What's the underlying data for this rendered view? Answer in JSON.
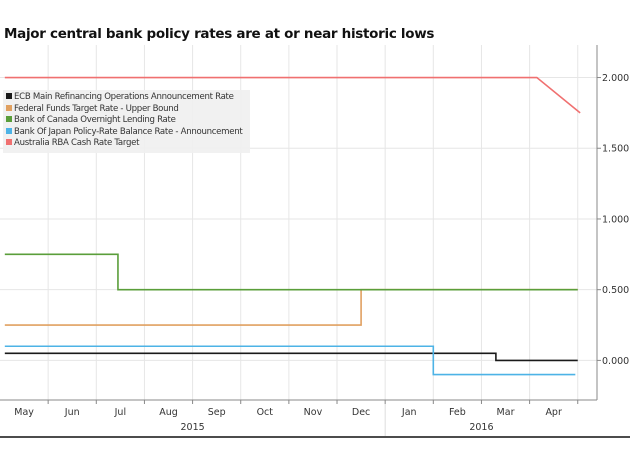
{
  "chart_data": {
    "type": "line",
    "title": "Major central bank policy rates are at or near historic lows",
    "xlabel": "",
    "ylabel": "",
    "x_unit": "months since 1 May 2015",
    "xlim": [
      0,
      12.4
    ],
    "ylim": [
      -0.28,
      2.23
    ],
    "yticks": [
      {
        "v": 2.0,
        "label": "2.000"
      },
      {
        "v": 1.5,
        "label": "1.500"
      },
      {
        "v": 1.0,
        "label": "1.000"
      },
      {
        "v": 0.5,
        "label": "0.500"
      },
      {
        "v": 0.0,
        "label": "0.000"
      }
    ],
    "months": [
      "May",
      "Jun",
      "Jul",
      "Aug",
      "Sep",
      "Oct",
      "Nov",
      "Dec",
      "Jan",
      "Feb",
      "Mar",
      "Apr"
    ],
    "years": [
      {
        "label": "2015",
        "from": 0,
        "to": 8
      },
      {
        "label": "2016",
        "from": 8,
        "to": 12.4
      }
    ],
    "grid": true,
    "legend_position": "top-left",
    "series": [
      {
        "name": "ECB Main Refinancing Operations Announcement Rate",
        "color": "#1a1a1a",
        "points": [
          [
            0.1,
            0.05
          ],
          [
            10.3,
            0.05
          ],
          [
            10.3,
            0.0
          ],
          [
            12.0,
            0.0
          ]
        ]
      },
      {
        "name": "Federal Funds Target Rate - Upper Bound",
        "color": "#e0a060",
        "points": [
          [
            0.1,
            0.25
          ],
          [
            7.5,
            0.25
          ],
          [
            7.5,
            0.5
          ],
          [
            12.0,
            0.5
          ]
        ]
      },
      {
        "name": "Bank of Canada Overnight Lending Rate",
        "color": "#5a9e3a",
        "points": [
          [
            0.1,
            0.75
          ],
          [
            2.45,
            0.75
          ],
          [
            2.45,
            0.5
          ],
          [
            12.0,
            0.5
          ]
        ]
      },
      {
        "name": "Bank Of Japan Policy-Rate Balance Rate - Announcement",
        "color": "#4db3e6",
        "points": [
          [
            0.1,
            0.1
          ],
          [
            9.0,
            0.1
          ],
          [
            9.0,
            -0.1
          ],
          [
            11.95,
            -0.1
          ]
        ]
      },
      {
        "name": "Australia RBA Cash Rate Target",
        "color": "#f07070",
        "points": [
          [
            0.1,
            2.0
          ],
          [
            11.15,
            2.0
          ],
          [
            12.05,
            1.75
          ]
        ]
      }
    ]
  }
}
